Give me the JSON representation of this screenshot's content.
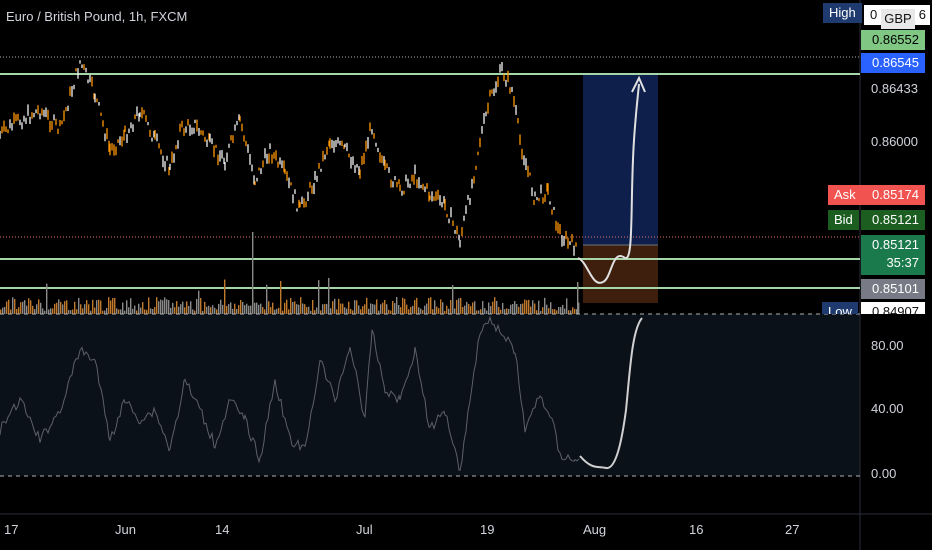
{
  "header": {
    "title": "Euro / British Pound, 1h, FXCM",
    "currency": "GBP"
  },
  "price_axis": {
    "high_tag": "High",
    "high_value_partial": "0",
    "high_value_tail": "6",
    "price_badges": [
      {
        "value": "0.86552",
        "color": "#81c784",
        "text_color": "#000000"
      },
      {
        "value": "0.86545",
        "color": "#2962ff",
        "text_color": "#ffffff"
      }
    ],
    "ticks": [
      "0.86433",
      "0.86000"
    ],
    "ask_tag": "Ask",
    "ask_value": "0.85174",
    "bid_tag": "Bid",
    "bid_value": "0.85121",
    "last_value": "0.85121",
    "countdown": "35:37",
    "support_value": "0.85101",
    "low_tag": "Low",
    "low_value": "0.84907"
  },
  "indicator_axis": {
    "ticks": [
      "80.00",
      "40.00",
      "0.00"
    ]
  },
  "time_axis": {
    "labels": [
      "17",
      "Jun",
      "14",
      "Jul",
      "19",
      "Aug",
      "16",
      "27"
    ]
  },
  "colors": {
    "candle": "#ff9800",
    "level_line": "#a5d6a7",
    "target_zone": "#0d1f4a",
    "stop_zone": "#3e1f0e",
    "ask": "#f05350",
    "bid": "#1b5e20",
    "last": "#1b7a4c",
    "support_badge": "#787b86",
    "oscillator": "#5d606b"
  }
}
